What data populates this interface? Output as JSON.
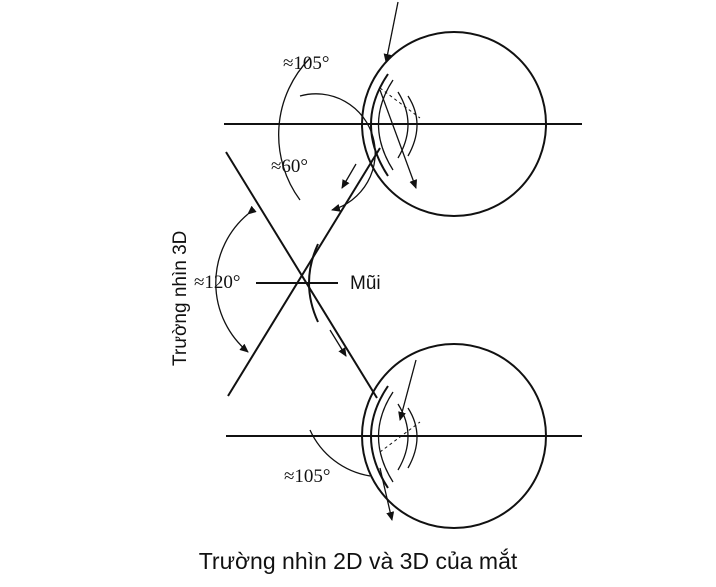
{
  "labels": {
    "angle_top": "≈105°",
    "angle_60": "≈60°",
    "angle_120": "≈120°",
    "angle_bottom": "≈105°",
    "nose": "Mũi",
    "vertical_label": "Trường nhìn 3D",
    "caption": "Trường nhìn 2D và 3D của mắt"
  },
  "colors": {
    "ink": "#111111",
    "background": "#ffffff"
  }
}
